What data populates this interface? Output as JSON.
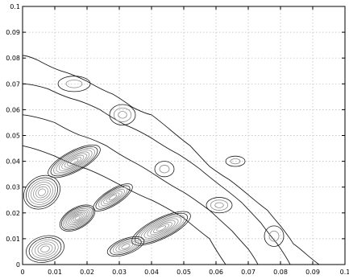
{
  "chart_data": {
    "type": "contour",
    "title": "",
    "xlabel": "",
    "ylabel": "",
    "xlim": [
      0,
      0.1
    ],
    "ylim": [
      0,
      0.1
    ],
    "grid": true,
    "x_ticks": [
      "0",
      "0.01",
      "0.02",
      "0.03",
      "0.04",
      "0.05",
      "0.06",
      "0.07",
      "0.08",
      "0.09",
      "0.1"
    ],
    "y_ticks": [
      "0",
      "0.01",
      "0.02",
      "0.03",
      "0.04",
      "0.05",
      "0.06",
      "0.07",
      "0.08",
      "0.09",
      "0.1"
    ],
    "colors": {
      "frame": "#000000",
      "grid": "#b8b8b8",
      "outer_contours": "#1a1a1a",
      "inner_contours": "#8c8c8c"
    },
    "outer_contours": [
      [
        [
          0.0,
          0.081
        ],
        [
          0.005,
          0.079
        ],
        [
          0.012,
          0.075
        ],
        [
          0.02,
          0.071
        ],
        [
          0.028,
          0.066
        ],
        [
          0.034,
          0.061
        ],
        [
          0.04,
          0.058
        ],
        [
          0.046,
          0.052
        ],
        [
          0.052,
          0.046
        ],
        [
          0.058,
          0.038
        ],
        [
          0.064,
          0.033
        ],
        [
          0.07,
          0.027
        ],
        [
          0.076,
          0.021
        ],
        [
          0.08,
          0.015
        ],
        [
          0.084,
          0.008
        ],
        [
          0.088,
          0.004
        ],
        [
          0.092,
          0.0
        ]
      ],
      [
        [
          0.0,
          0.07
        ],
        [
          0.008,
          0.068
        ],
        [
          0.016,
          0.064
        ],
        [
          0.024,
          0.06
        ],
        [
          0.032,
          0.054
        ],
        [
          0.04,
          0.049
        ],
        [
          0.048,
          0.043
        ],
        [
          0.055,
          0.037
        ],
        [
          0.062,
          0.03
        ],
        [
          0.068,
          0.024
        ],
        [
          0.074,
          0.016
        ],
        [
          0.079,
          0.008
        ],
        [
          0.083,
          0.0
        ]
      ],
      [
        [
          0.0,
          0.058
        ],
        [
          0.01,
          0.055
        ],
        [
          0.018,
          0.05
        ],
        [
          0.026,
          0.046
        ],
        [
          0.034,
          0.04
        ],
        [
          0.042,
          0.034
        ],
        [
          0.05,
          0.028
        ],
        [
          0.058,
          0.021
        ],
        [
          0.065,
          0.013
        ],
        [
          0.07,
          0.006
        ],
        [
          0.073,
          0.0
        ]
      ],
      [
        [
          0.0,
          0.046
        ],
        [
          0.01,
          0.042
        ],
        [
          0.02,
          0.037
        ],
        [
          0.03,
          0.031
        ],
        [
          0.04,
          0.025
        ],
        [
          0.05,
          0.018
        ],
        [
          0.058,
          0.01
        ],
        [
          0.063,
          0.0
        ]
      ]
    ],
    "contour_islands": [
      {
        "cx": 0.031,
        "cy": 0.058,
        "rx": 0.004,
        "ry": 0.004,
        "levels": 3
      },
      {
        "cx": 0.016,
        "cy": 0.07,
        "rx": 0.005,
        "ry": 0.003,
        "levels": 2
      },
      {
        "cx": 0.061,
        "cy": 0.023,
        "rx": 0.004,
        "ry": 0.003,
        "levels": 3
      },
      {
        "cx": 0.078,
        "cy": 0.011,
        "rx": 0.003,
        "ry": 0.004,
        "levels": 2
      },
      {
        "cx": 0.066,
        "cy": 0.04,
        "rx": 0.003,
        "ry": 0.002,
        "levels": 2
      },
      {
        "cx": 0.044,
        "cy": 0.037,
        "rx": 0.003,
        "ry": 0.003,
        "levels": 2
      }
    ],
    "peaks": [
      {
        "cx": 0.016,
        "cy": 0.04,
        "rx": 0.009,
        "ry": 0.004,
        "angle": -28,
        "levels": 9
      },
      {
        "cx": 0.017,
        "cy": 0.018,
        "rx": 0.006,
        "ry": 0.004,
        "angle": -30,
        "levels": 10
      },
      {
        "cx": 0.028,
        "cy": 0.026,
        "rx": 0.007,
        "ry": 0.003,
        "angle": -32,
        "levels": 7
      },
      {
        "cx": 0.043,
        "cy": 0.014,
        "rx": 0.01,
        "ry": 0.004,
        "angle": -26,
        "levels": 9
      },
      {
        "cx": 0.032,
        "cy": 0.007,
        "rx": 0.006,
        "ry": 0.003,
        "angle": -20,
        "levels": 6
      },
      {
        "cx": 0.006,
        "cy": 0.028,
        "rx": 0.006,
        "ry": 0.006,
        "angle": -35,
        "levels": 7
      },
      {
        "cx": 0.007,
        "cy": 0.006,
        "rx": 0.006,
        "ry": 0.005,
        "angle": -15,
        "levels": 6
      }
    ]
  }
}
